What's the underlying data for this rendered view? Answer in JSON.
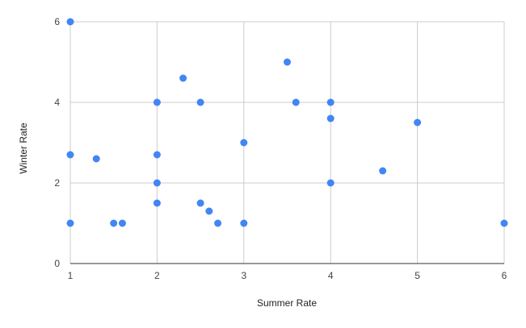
{
  "chart_data": {
    "type": "scatter",
    "xlabel": "Summer Rate",
    "ylabel": "Winter Rate",
    "xlim": [
      1,
      6
    ],
    "ylim": [
      0,
      6
    ],
    "x_ticks": [
      1,
      2,
      3,
      4,
      5,
      6
    ],
    "y_ticks": [
      0,
      2,
      4,
      6
    ],
    "grid": true,
    "legend": "none",
    "series": [
      {
        "color": "#4285f4",
        "points": [
          {
            "x": 1,
            "y": 6
          },
          {
            "x": 1,
            "y": 2.7
          },
          {
            "x": 1,
            "y": 1
          },
          {
            "x": 1.3,
            "y": 2.6
          },
          {
            "x": 1.5,
            "y": 1
          },
          {
            "x": 1.6,
            "y": 1
          },
          {
            "x": 2,
            "y": 4
          },
          {
            "x": 2,
            "y": 2.7
          },
          {
            "x": 2,
            "y": 2
          },
          {
            "x": 2,
            "y": 1.5
          },
          {
            "x": 2.3,
            "y": 4.6
          },
          {
            "x": 2.5,
            "y": 4
          },
          {
            "x": 2.5,
            "y": 1.5
          },
          {
            "x": 2.6,
            "y": 1.3
          },
          {
            "x": 2.7,
            "y": 1
          },
          {
            "x": 3,
            "y": 3
          },
          {
            "x": 3,
            "y": 1
          },
          {
            "x": 3.5,
            "y": 5
          },
          {
            "x": 3.6,
            "y": 4
          },
          {
            "x": 4,
            "y": 4
          },
          {
            "x": 4,
            "y": 3.6
          },
          {
            "x": 4,
            "y": 2
          },
          {
            "x": 4.6,
            "y": 2.3
          },
          {
            "x": 5,
            "y": 3.5
          },
          {
            "x": 6,
            "y": 1
          }
        ]
      }
    ]
  }
}
